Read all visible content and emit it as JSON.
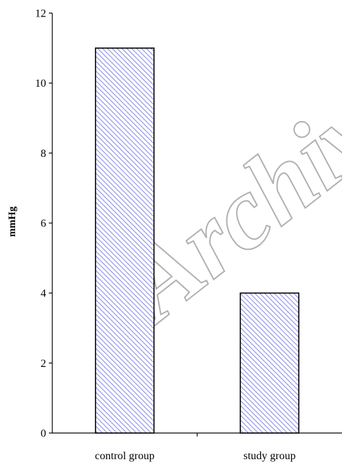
{
  "watermark": "Archive",
  "chart_data": {
    "type": "bar",
    "categories": [
      "control group",
      "study group"
    ],
    "values": [
      11,
      4
    ],
    "title": "",
    "xlabel": "",
    "ylabel": "mmHg",
    "ylim": [
      0,
      12
    ],
    "yticks": [
      "0",
      "2",
      "4",
      "6",
      "8",
      "10",
      "12"
    ],
    "grid": false,
    "legend": "none",
    "bar_fill": "hatched",
    "bar_hatch_color": "#8c8ce8",
    "bar_outline_color": "#000000"
  }
}
